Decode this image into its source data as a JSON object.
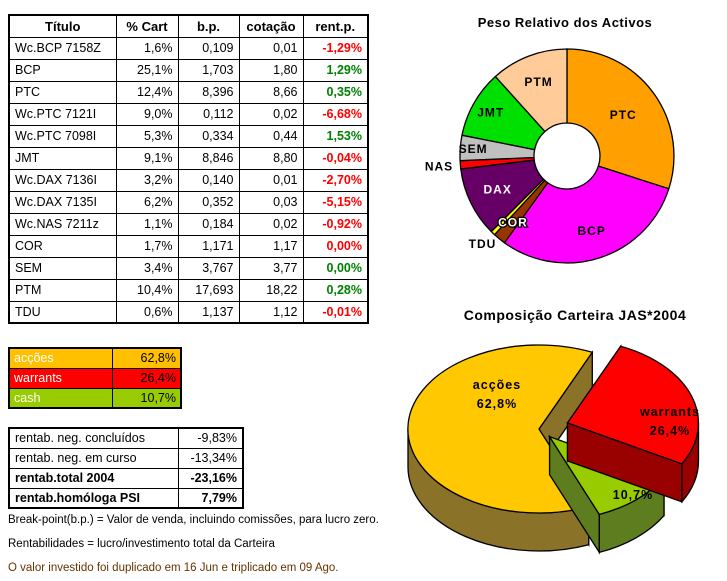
{
  "background": "#FFFFFF",
  "colors": {
    "negative": "#FF0000",
    "positive": "#008000"
  },
  "main_table": {
    "headers": [
      "Título",
      "% Cart",
      "b.p.",
      "cotação",
      "rent.p."
    ],
    "rows": [
      {
        "titulo": "Wc.BCP 7158Z",
        "pct_cart": "1,6%",
        "bp": "0,109",
        "cotacao": "0,01",
        "rent": "-1,29%",
        "rent_color": "negative"
      },
      {
        "titulo": "BCP",
        "pct_cart": "25,1%",
        "bp": "1,703",
        "cotacao": "1,80",
        "rent": "1,29%",
        "rent_color": "positive"
      },
      {
        "titulo": "PTC",
        "pct_cart": "12,4%",
        "bp": "8,396",
        "cotacao": "8,66",
        "rent": "0,35%",
        "rent_color": "positive"
      },
      {
        "titulo": "Wc.PTC 7121I",
        "pct_cart": "9,0%",
        "bp": "0,112",
        "cotacao": "0,02",
        "rent": "-6,68%",
        "rent_color": "negative"
      },
      {
        "titulo": "Wc.PTC 7098I",
        "pct_cart": "5,3%",
        "bp": "0,334",
        "cotacao": "0,44",
        "rent": "1,53%",
        "rent_color": "positive"
      },
      {
        "titulo": "JMT",
        "pct_cart": "9,1%",
        "bp": "8,846",
        "cotacao": "8,80",
        "rent": "-0,04%",
        "rent_color": "negative"
      },
      {
        "titulo": "Wc.DAX 7136I",
        "pct_cart": "3,2%",
        "bp": "0,140",
        "cotacao": "0,01",
        "rent": "-2,70%",
        "rent_color": "negative"
      },
      {
        "titulo": "Wc.DAX 7135I",
        "pct_cart": "6,2%",
        "bp": "0,352",
        "cotacao": "0,03",
        "rent": "-5,15%",
        "rent_color": "negative"
      },
      {
        "titulo": "Wc.NAS 7211z",
        "pct_cart": "1,1%",
        "bp": "0,184",
        "cotacao": "0,02",
        "rent": "-0,92%",
        "rent_color": "negative"
      },
      {
        "titulo": "COR",
        "pct_cart": "1,7%",
        "bp": "1,171",
        "cotacao": "1,17",
        "rent": "0,00%",
        "rent_color": "negative"
      },
      {
        "titulo": "SEM",
        "pct_cart": "3,4%",
        "bp": "3,767",
        "cotacao": "3,77",
        "rent": "0,00%",
        "rent_color": "positive"
      },
      {
        "titulo": "PTM",
        "pct_cart": "10,4%",
        "bp": "17,693",
        "cotacao": "18,22",
        "rent": "0,28%",
        "rent_color": "positive"
      },
      {
        "titulo": "TDU",
        "pct_cart": "0,6%",
        "bp": "1,137",
        "cotacao": "1,12",
        "rent": "-0,01%",
        "rent_color": "negative"
      }
    ]
  },
  "allocation_table": {
    "rows": [
      {
        "label": "acções",
        "value": "62,8%",
        "bg": "#FFC000"
      },
      {
        "label": "warrants",
        "value": "26,4%",
        "bg": "#FF0000"
      },
      {
        "label": "cash",
        "value": "10,7%",
        "bg": "#99CC00"
      }
    ]
  },
  "results_table": {
    "rows": [
      {
        "label": "rentab. neg. concluídos",
        "value": "-9,83%",
        "bold": false
      },
      {
        "label": "rentab. neg. em curso",
        "value": "-13,34%",
        "bold": false
      },
      {
        "label": "rentab.total 2004",
        "value": "-23,16%",
        "bold": true
      },
      {
        "label": "rentab.homóloga PSI",
        "value": "7,79%",
        "bold": true
      }
    ]
  },
  "footnotes": [
    {
      "text": "Break-point(b.p.) = Valor de venda, incluindo comissões, para lucro zero.",
      "color": "#000000"
    },
    {
      "text": "Rentabilidades = lucro/investimento total da Carteira",
      "color": "#000000"
    },
    {
      "text": "O valor investido foi duplicado em 16 Jun e triplicado em 09 Ago.",
      "color": "#663300"
    }
  ],
  "chart_data": [
    {
      "type": "pie",
      "variant": "donut",
      "title": "Peso Relativo dos Activos",
      "units": "% of portfolio",
      "start_angle_deg": 0,
      "direction": "clockwise",
      "slices": [
        {
          "label": "PTC",
          "value": 26.7,
          "color": "#FFA000",
          "label_color": "#000000",
          "label_r": 0.65
        },
        {
          "label": "BCP",
          "value": 26.7,
          "color": "#FF00FF",
          "label_color": "#000000",
          "label_r": 0.74
        },
        {
          "label": "COR",
          "value": 1.7,
          "color": "#993300",
          "label_color": "#FFFFFF",
          "label_r": 0.8,
          "label_outline": true
        },
        {
          "label": "TDU",
          "value": 0.6,
          "color": "#FFFF00",
          "label_color": "#000000",
          "label_r": 1.14
        },
        {
          "label": "DAX",
          "value": 9.4,
          "color": "#660066",
          "label_color": "#FFFFFF",
          "label_r": 0.72
        },
        {
          "label": "NAS",
          "value": 1.1,
          "color": "#FF0000",
          "label_color": "#000000",
          "label_r": 1.2
        },
        {
          "label": "SEM",
          "value": 3.4,
          "color": "#C0C0C0",
          "label_color": "#000000",
          "label_r": 0.88
        },
        {
          "label": "JMT",
          "value": 9.1,
          "color": "#00E000",
          "label_color": "#000000",
          "label_r": 0.82
        },
        {
          "label": "PTM",
          "value": 10.4,
          "color": "#FFCC99",
          "label_color": "#000000",
          "label_r": 0.74
        }
      ]
    },
    {
      "type": "pie",
      "variant": "3d-exploded",
      "title": "Composição Carteira JAS*2004",
      "start_angle_deg": 24,
      "direction": "clockwise",
      "slices": [
        {
          "label": "warrants",
          "value": 26.4,
          "pct_label": "26,4%",
          "color": "#FF0000",
          "side_color": "#990000",
          "explode": 30,
          "draw_order": 2,
          "label_offset": [
            131,
            -8
          ]
        },
        {
          "label": "cash",
          "value": 10.7,
          "pct_label": "10,7%",
          "color": "#99CC00",
          "side_color": "#5E7D1E",
          "explode": 16,
          "draw_order": 1,
          "label_offset": [
            94,
            56
          ]
        },
        {
          "label": "acções",
          "value": 62.8,
          "pct_label": "62,8%",
          "color": "#FFC800",
          "side_color": "#8A7228",
          "explode": 0,
          "draw_order": 0,
          "label_offset": [
            -42,
            -35
          ]
        }
      ]
    }
  ]
}
